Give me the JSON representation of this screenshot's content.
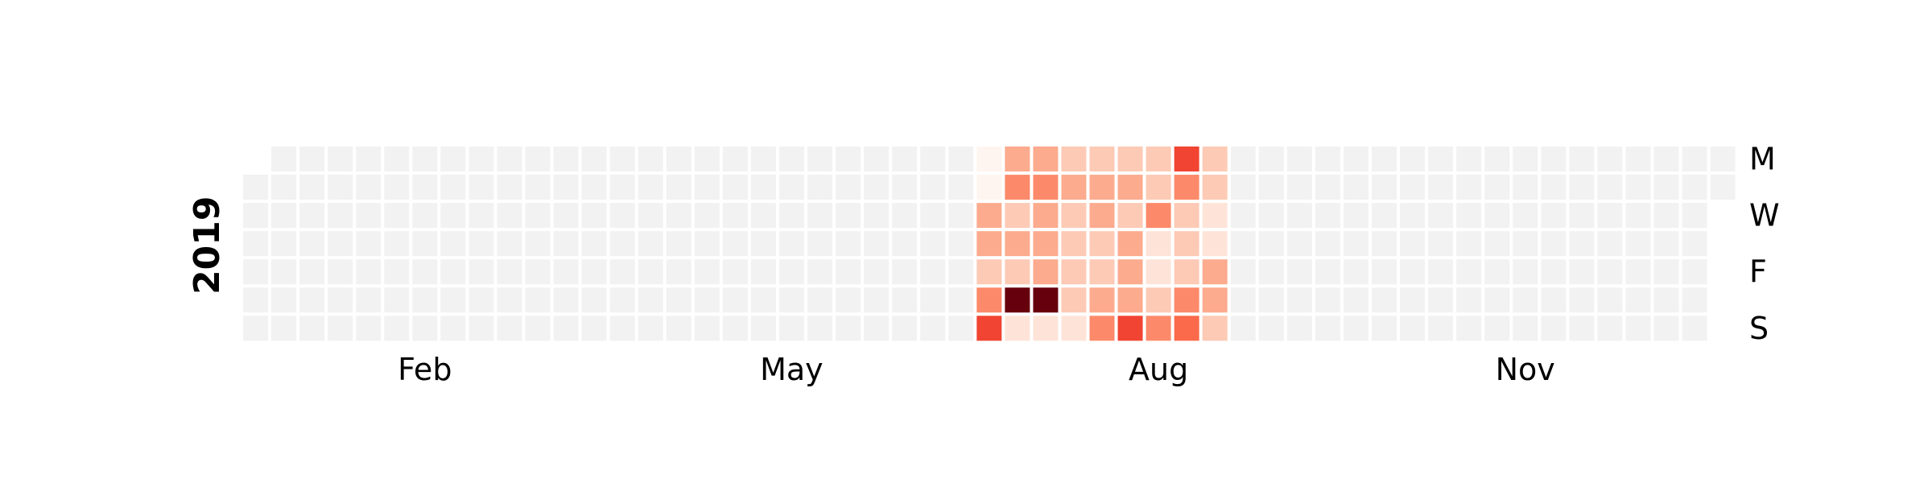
{
  "chart_data": {
    "type": "heatmap",
    "year": "2019",
    "week_start": "Monday",
    "date_range": [
      "2019-01-01",
      "2019-12-31"
    ],
    "month_labels": [
      "Feb",
      "May",
      "Aug",
      "Nov"
    ],
    "day_labels": [
      "M",
      "W",
      "F",
      "S"
    ],
    "empty_color": "#f2f2f2",
    "colormap": "Reds",
    "value_range": [
      0,
      10
    ],
    "legend": "none",
    "grid": false,
    "active_weeks": [
      {
        "week_start": "2019-07-01",
        "values": [
          0,
          0,
          3,
          3,
          2,
          4,
          6
        ]
      },
      {
        "week_start": "2019-07-08",
        "values": [
          3,
          4,
          2,
          3,
          2,
          10,
          1
        ]
      },
      {
        "week_start": "2019-07-15",
        "values": [
          3,
          4,
          3,
          3,
          3,
          10,
          1
        ]
      },
      {
        "week_start": "2019-07-22",
        "values": [
          2,
          3,
          2,
          2,
          2,
          2,
          1
        ]
      },
      {
        "week_start": "2019-07-29",
        "values": [
          2,
          3,
          3,
          2,
          2,
          3,
          4
        ]
      },
      {
        "week_start": "2019-08-05",
        "values": [
          2,
          3,
          2,
          3,
          3,
          3,
          6
        ]
      },
      {
        "week_start": "2019-08-12",
        "values": [
          2,
          2,
          4,
          1,
          1,
          2,
          4
        ]
      },
      {
        "week_start": "2019-08-19",
        "values": [
          6,
          4,
          2,
          2,
          2,
          4,
          5
        ]
      },
      {
        "week_start": "2019-08-26",
        "values": [
          2,
          2,
          1,
          1,
          3,
          3,
          2
        ]
      }
    ]
  }
}
